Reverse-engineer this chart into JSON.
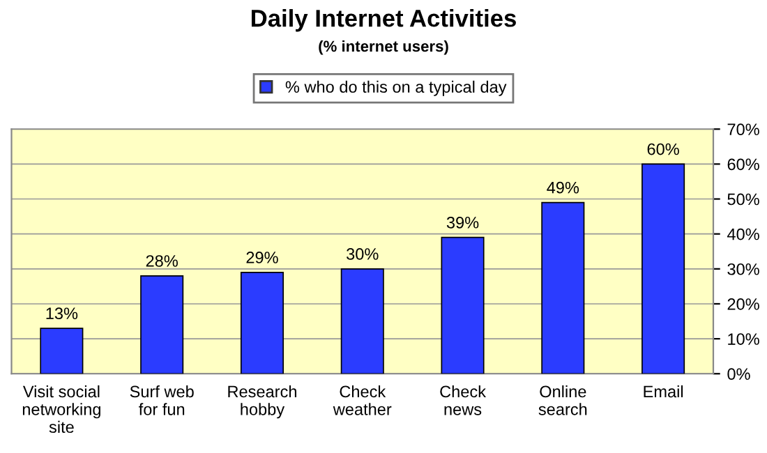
{
  "chart_data": {
    "type": "bar",
    "title": "Daily Internet Activities",
    "subtitle": "(% internet users)",
    "categories": [
      "Visit social\nnetworking\nsite",
      "Surf web\nfor fun",
      "Research\nhobby",
      "Check\nweather",
      "Check\nnews",
      "Online\nsearch",
      "Email"
    ],
    "series": [
      {
        "name": "% who do this on a typical day",
        "color": "#2b3cff",
        "values": [
          13,
          28,
          29,
          30,
          39,
          49,
          60
        ],
        "value_labels": [
          "13%",
          "28%",
          "29%",
          "30%",
          "39%",
          "49%",
          "60%"
        ]
      }
    ],
    "ylim": [
      0,
      70
    ],
    "yticks": [
      {
        "value": 0,
        "label": "0%"
      },
      {
        "value": 10,
        "label": "10%"
      },
      {
        "value": 20,
        "label": "20%"
      },
      {
        "value": 30,
        "label": "30%"
      },
      {
        "value": 40,
        "label": "40%"
      },
      {
        "value": 50,
        "label": "50%"
      },
      {
        "value": 60,
        "label": "60%"
      },
      {
        "value": 70,
        "label": "70%"
      }
    ],
    "grid": "y",
    "legend": "top"
  }
}
